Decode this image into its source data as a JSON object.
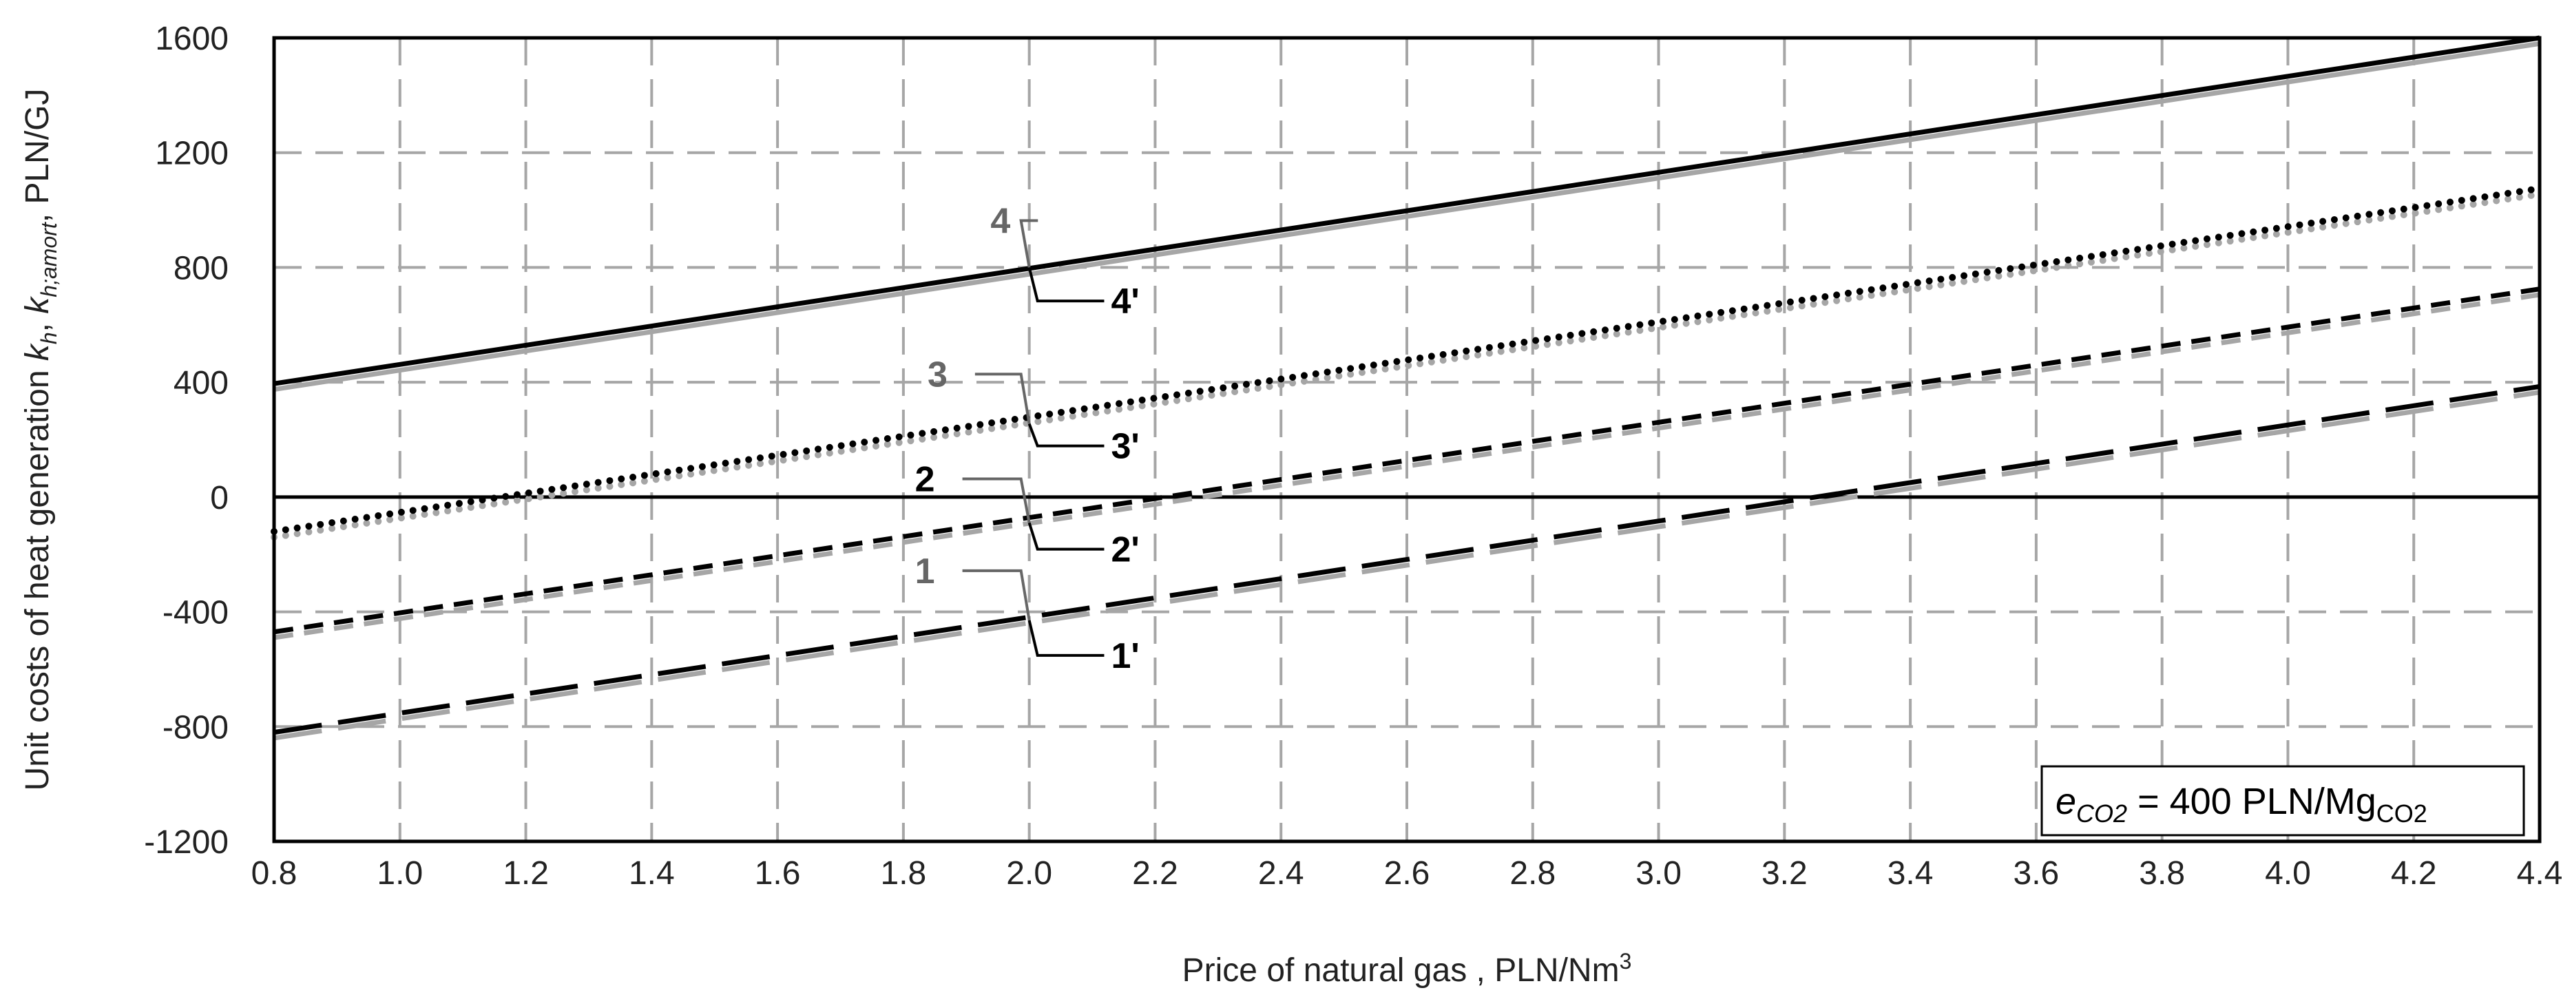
{
  "chart_data": {
    "type": "line",
    "xlabel": "Price of natural gas , PLN/Nm",
    "xlabel_sup": "3",
    "ylabel_parts": [
      "Unit costs of heat generation ",
      "k",
      "h",
      ", ",
      "k",
      "h;amort",
      ", PLN/GJ"
    ],
    "xlim": [
      0.8,
      4.4
    ],
    "ylim": [
      -1200,
      1600
    ],
    "x_ticks": [
      "0.8",
      "1.0",
      "1.2",
      "1.4",
      "1.6",
      "1.8",
      "2.0",
      "2.2",
      "2.4",
      "2.6",
      "2.8",
      "3.0",
      "3.2",
      "3.4",
      "3.6",
      "3.8",
      "4.0",
      "4.2",
      "4.4"
    ],
    "y_ticks": [
      "1600",
      "1200",
      "800",
      "400",
      "0",
      "-400",
      "-800",
      "-1200"
    ],
    "grid": true,
    "series": [
      {
        "name": "4",
        "color": "#000000",
        "dash": "solid",
        "x": [
          0.8,
          4.4
        ],
        "y": [
          395,
          1600
        ]
      },
      {
        "name": "4'",
        "color": "#a6a6a6",
        "dash": "solid",
        "x": [
          0.8,
          4.4
        ],
        "y": [
          375,
          1580
        ]
      },
      {
        "name": "3",
        "color": "#000000",
        "dash": "dotted",
        "x": [
          0.8,
          4.4
        ],
        "y": [
          -120,
          1075
        ]
      },
      {
        "name": "3'",
        "color": "#a6a6a6",
        "dash": "dotted",
        "x": [
          0.8,
          4.4
        ],
        "y": [
          -140,
          1055
        ]
      },
      {
        "name": "2",
        "color": "#000000",
        "dash": "short-dash",
        "x": [
          0.8,
          4.4
        ],
        "y": [
          -470,
          725
        ]
      },
      {
        "name": "2'",
        "color": "#a6a6a6",
        "dash": "short-dash",
        "x": [
          0.8,
          4.4
        ],
        "y": [
          -490,
          705
        ]
      },
      {
        "name": "1",
        "color": "#000000",
        "dash": "long-dash",
        "x": [
          0.8,
          4.4
        ],
        "y": [
          -820,
          385
        ]
      },
      {
        "name": "1'",
        "color": "#a6a6a6",
        "dash": "long-dash",
        "x": [
          0.8,
          4.4
        ],
        "y": [
          -840,
          365
        ]
      }
    ],
    "curve_labels": [
      {
        "text": "4",
        "color": "#666666",
        "x": 1.97,
        "y": 920
      },
      {
        "text": "4'",
        "color": "#000000",
        "x": 2.13,
        "y": 640
      },
      {
        "text": "3",
        "color": "#666666",
        "x": 1.87,
        "y": 385
      },
      {
        "text": "3'",
        "color": "#000000",
        "x": 2.13,
        "y": 135
      },
      {
        "text": "2",
        "color": "#000000",
        "x": 1.85,
        "y": 20
      },
      {
        "text": "2'",
        "color": "#000000",
        "x": 2.13,
        "y": -225
      },
      {
        "text": "1",
        "color": "#666666",
        "x": 1.85,
        "y": -300
      },
      {
        "text": "1'",
        "color": "#000000",
        "x": 2.13,
        "y": -595
      }
    ],
    "annotation": {
      "e": "e",
      "e_sub": "CO2",
      "middle": " = 400 PLN/Mg",
      "unit_sub": "CO2"
    }
  }
}
